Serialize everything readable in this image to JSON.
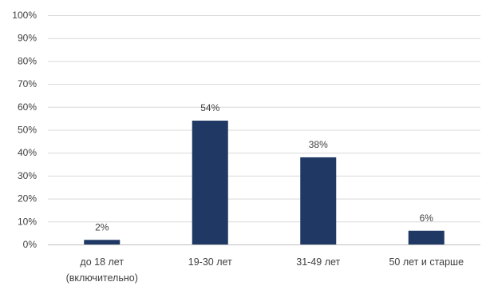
{
  "chart_data": {
    "type": "bar",
    "categories": [
      [
        "до 18 лет",
        "(включительно)"
      ],
      [
        "19-30 лет"
      ],
      [
        "31-49 лет"
      ],
      [
        "50 лет и старше"
      ]
    ],
    "values": [
      2,
      54,
      38,
      6
    ],
    "data_labels": [
      "2%",
      "54%",
      "38%",
      "6%"
    ],
    "title": "",
    "xlabel": "",
    "ylabel": "",
    "ylim": [
      0,
      100
    ],
    "yticks": [
      0,
      10,
      20,
      30,
      40,
      50,
      60,
      70,
      80,
      90,
      100
    ],
    "ytick_labels": [
      "0%",
      "10%",
      "20%",
      "30%",
      "40%",
      "50%",
      "60%",
      "70%",
      "80%",
      "90%",
      "100%"
    ],
    "grid": true,
    "legend": "none",
    "colors": {
      "bar": "#1f3864"
    }
  }
}
